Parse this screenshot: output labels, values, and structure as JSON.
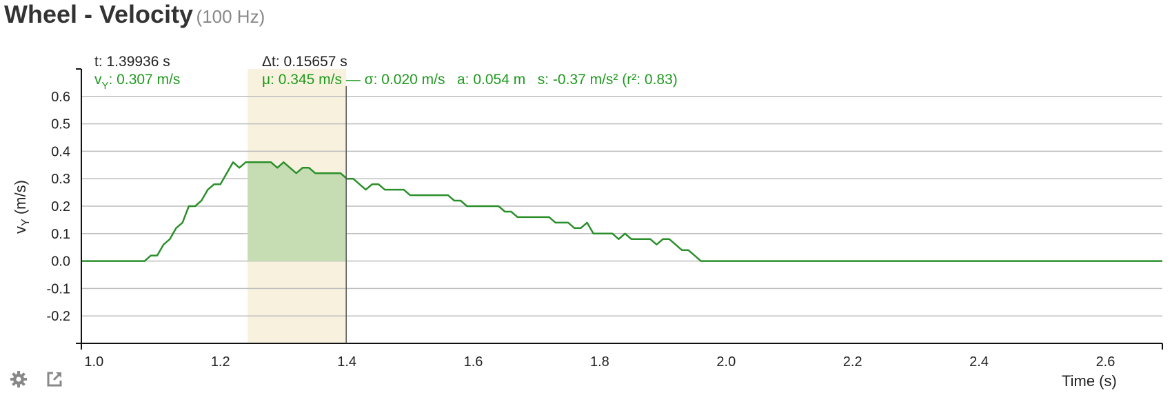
{
  "header": {
    "title": "Wheel - Velocity",
    "rate": "(100 Hz)"
  },
  "readout": {
    "t_label": "t: 1.39936 s",
    "dt_label": "Δt: 0.15657 s",
    "v_prefix": "v",
    "v_sub": "Y",
    "v_value": ": 0.307 m/s",
    "stats_label": "μ: 0.345 m/s — σ: 0.020 m/s   a: 0.054 m   s: -0.37 m/s² (r²: 0.83)"
  },
  "colors": {
    "line": "#2a8f2a",
    "fill": "#c6ddb4",
    "selection": "#f8f1de",
    "grid": "#bdbdbd",
    "axis": "#111111",
    "cursor": "#555555",
    "readout_green": "#1f9a1f"
  },
  "chart_data": {
    "type": "line",
    "xlabel": "Time (s)",
    "ylabel": "vY (m/s)",
    "ylabel_main": "v",
    "ylabel_sub": "Y",
    "ylabel_unit": " (m/s)",
    "xlim": [
      0.98,
      2.69
    ],
    "ylim": [
      -0.3,
      0.7
    ],
    "x_ticks": [
      "1.0",
      "1.2",
      "1.4",
      "1.6",
      "1.8",
      "2.0",
      "2.2",
      "2.4",
      "2.6"
    ],
    "x_tick_values": [
      1.0,
      1.2,
      1.4,
      1.6,
      1.8,
      2.0,
      2.2,
      2.4,
      2.6
    ],
    "y_ticks": [
      "0.6",
      "0.5",
      "0.4",
      "0.3",
      "0.2",
      "0.1",
      "0.0",
      "-0.1",
      "-0.2"
    ],
    "y_tick_values": [
      0.6,
      0.5,
      0.4,
      0.3,
      0.2,
      0.1,
      0.0,
      -0.1,
      -0.2
    ],
    "grid": true,
    "selection": {
      "start": 1.243,
      "end": 1.399
    },
    "cursor": 1.399,
    "series": [
      {
        "x": [
          0.98,
          1.08,
          1.09,
          1.1,
          1.11,
          1.12,
          1.13,
          1.14,
          1.15,
          1.16,
          1.17,
          1.18,
          1.19,
          1.2,
          1.21,
          1.22,
          1.23,
          1.24,
          1.25,
          1.26,
          1.27,
          1.28,
          1.29,
          1.3,
          1.31,
          1.32,
          1.33,
          1.34,
          1.35,
          1.36,
          1.37,
          1.38,
          1.39,
          1.4,
          1.41,
          1.42,
          1.43,
          1.44,
          1.45,
          1.46,
          1.47,
          1.48,
          1.49,
          1.5,
          1.51,
          1.52,
          1.53,
          1.54,
          1.55,
          1.56,
          1.57,
          1.58,
          1.59,
          1.6,
          1.61,
          1.62,
          1.63,
          1.64,
          1.65,
          1.66,
          1.67,
          1.68,
          1.69,
          1.7,
          1.71,
          1.72,
          1.73,
          1.74,
          1.75,
          1.76,
          1.77,
          1.78,
          1.79,
          1.8,
          1.81,
          1.82,
          1.83,
          1.84,
          1.85,
          1.86,
          1.87,
          1.88,
          1.89,
          1.9,
          1.91,
          1.92,
          1.93,
          1.94,
          1.95,
          1.96,
          2.69
        ],
        "values": [
          0.0,
          0.0,
          0.02,
          0.02,
          0.06,
          0.08,
          0.12,
          0.14,
          0.2,
          0.2,
          0.22,
          0.26,
          0.28,
          0.28,
          0.32,
          0.36,
          0.34,
          0.36,
          0.36,
          0.36,
          0.36,
          0.36,
          0.34,
          0.36,
          0.34,
          0.32,
          0.34,
          0.34,
          0.32,
          0.32,
          0.32,
          0.32,
          0.32,
          0.3,
          0.3,
          0.28,
          0.26,
          0.28,
          0.28,
          0.26,
          0.26,
          0.26,
          0.26,
          0.24,
          0.24,
          0.24,
          0.24,
          0.24,
          0.24,
          0.24,
          0.22,
          0.22,
          0.2,
          0.2,
          0.2,
          0.2,
          0.2,
          0.2,
          0.18,
          0.18,
          0.16,
          0.16,
          0.16,
          0.16,
          0.16,
          0.16,
          0.14,
          0.14,
          0.14,
          0.12,
          0.12,
          0.14,
          0.1,
          0.1,
          0.1,
          0.1,
          0.08,
          0.1,
          0.08,
          0.08,
          0.08,
          0.08,
          0.06,
          0.08,
          0.08,
          0.06,
          0.04,
          0.04,
          0.02,
          0.0,
          0.0
        ]
      }
    ]
  },
  "toolbar": {
    "settings_icon": "gear-icon",
    "export_icon": "external-link-icon"
  }
}
